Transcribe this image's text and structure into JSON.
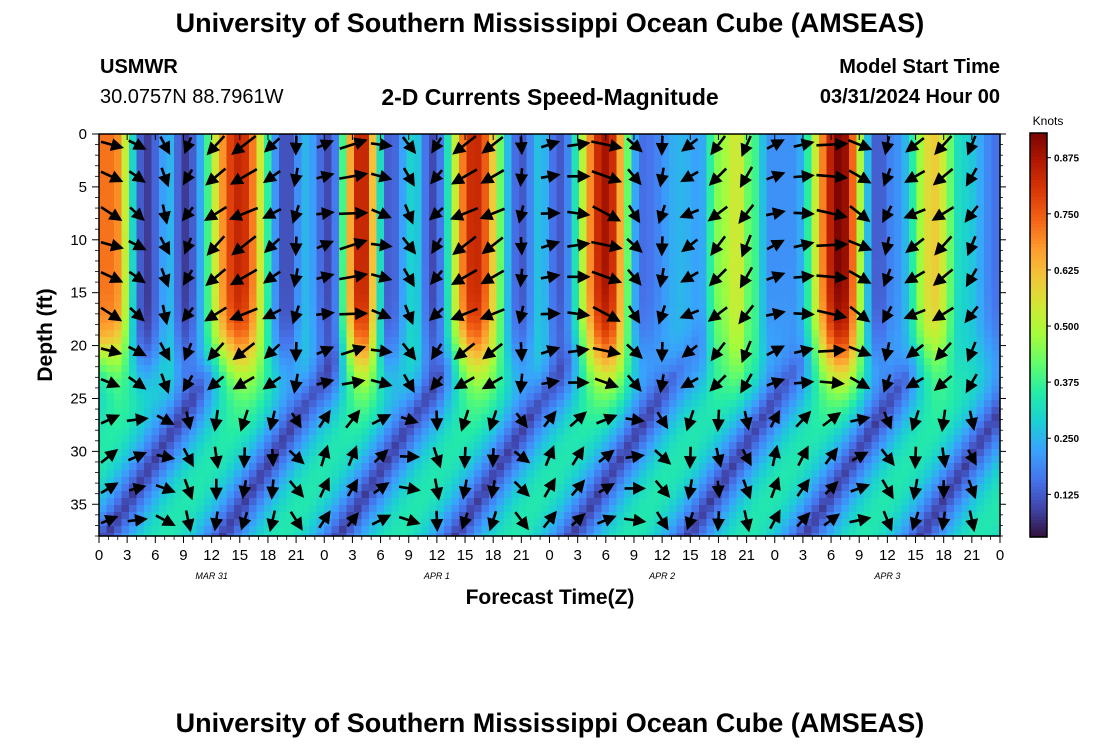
{
  "header": {
    "title": "University of Southern Mississippi Ocean Cube (AMSEAS)",
    "station": "USMWR",
    "coords": "30.0757N  88.7961W",
    "subtitle": "2-D Currents Speed-Magnitude",
    "model_start_label": "Model Start Time",
    "model_start_value": "03/31/2024 Hour 00"
  },
  "footer": {
    "title": "University of Southern Mississippi Ocean Cube (AMSEAS)"
  },
  "chart_data": {
    "type": "heatmap",
    "title": "2-D Currents Speed-Magnitude",
    "xlabel": "Forecast Time(Z)",
    "ylabel": "Depth (ft)",
    "x_ticks": [
      "0",
      "3",
      "6",
      "9",
      "12",
      "15",
      "18",
      "21",
      "0",
      "3",
      "6",
      "9",
      "12",
      "15",
      "18",
      "21",
      "0",
      "3",
      "6",
      "9",
      "12",
      "15",
      "18",
      "21",
      "0",
      "3",
      "6",
      "9",
      "12",
      "15",
      "18",
      "21",
      "0"
    ],
    "x_range_hours": [
      0,
      96
    ],
    "date_labels": [
      {
        "label": "MAR 31",
        "hour": 12
      },
      {
        "label": "APR 1",
        "hour": 36
      },
      {
        "label": "APR 2",
        "hour": 60
      },
      {
        "label": "APR 3",
        "hour": 84
      }
    ],
    "y_ticks": [
      "0",
      "5",
      "10",
      "15",
      "20",
      "25",
      "30",
      "35"
    ],
    "y_range_ft": [
      0,
      38
    ],
    "colorbar": {
      "label": "Knots",
      "ticks": [
        "0.125",
        "0.250",
        "0.375",
        "0.500",
        "0.625",
        "0.750",
        "0.875"
      ],
      "range": [
        0.03,
        0.93
      ],
      "colors": [
        "#30123b",
        "#4145ab",
        "#4675ed",
        "#39a2fc",
        "#1bcfd4",
        "#24eca6",
        "#61fc6c",
        "#a4fc3b",
        "#d1e834",
        "#f3c63a",
        "#fe9b2d",
        "#f36315",
        "#d93806",
        "#b11901",
        "#7a0402"
      ]
    },
    "speed_peaks": [
      {
        "hour": 1.5,
        "value": 0.72
      },
      {
        "hour": 5,
        "value": 0.08
      },
      {
        "hour": 7.5,
        "value": 0.25
      },
      {
        "hour": 9,
        "value": 0.08
      },
      {
        "hour": 15,
        "value": 0.84
      },
      {
        "hour": 20,
        "value": 0.1
      },
      {
        "hour": 22,
        "value": 0.25
      },
      {
        "hour": 24.5,
        "value": 0.1
      },
      {
        "hour": 28,
        "value": 0.86
      },
      {
        "hour": 31,
        "value": 0.12
      },
      {
        "hour": 33.5,
        "value": 0.3
      },
      {
        "hour": 35.5,
        "value": 0.1
      },
      {
        "hour": 40,
        "value": 0.84
      },
      {
        "hour": 45,
        "value": 0.12
      },
      {
        "hour": 47,
        "value": 0.27
      },
      {
        "hour": 49,
        "value": 0.12
      },
      {
        "hour": 54,
        "value": 0.88
      },
      {
        "hour": 58,
        "value": 0.15
      },
      {
        "hour": 62,
        "value": 0.25
      },
      {
        "hour": 64,
        "value": 0.22
      },
      {
        "hour": 66,
        "value": 0.45
      },
      {
        "hour": 68,
        "value": 0.55
      },
      {
        "hour": 69.5,
        "value": 0.4
      },
      {
        "hour": 71.5,
        "value": 0.2
      },
      {
        "hour": 74,
        "value": 0.2
      },
      {
        "hour": 79,
        "value": 0.93
      },
      {
        "hour": 83,
        "value": 0.12
      },
      {
        "hour": 85,
        "value": 0.2
      },
      {
        "hour": 89,
        "value": 0.6
      },
      {
        "hour": 92,
        "value": 0.3
      },
      {
        "hour": 96,
        "value": 0.15
      }
    ],
    "arrow_columns": [
      {
        "hour": 1,
        "angle_deg": 20
      },
      {
        "hour": 4,
        "angle_deg": 35
      },
      {
        "hour": 7,
        "angle_deg": 70
      },
      {
        "hour": 9.5,
        "angle_deg": 120
      },
      {
        "hour": 12.5,
        "angle_deg": 140
      },
      {
        "hour": 15.5,
        "angle_deg": 150
      },
      {
        "hour": 18.5,
        "angle_deg": 145
      },
      {
        "hour": 21,
        "angle_deg": 100
      },
      {
        "hour": 24,
        "angle_deg": -15
      },
      {
        "hour": 27,
        "angle_deg": -10
      },
      {
        "hour": 30,
        "angle_deg": 15
      },
      {
        "hour": 33,
        "angle_deg": 60
      },
      {
        "hour": 36,
        "angle_deg": 130
      },
      {
        "hour": 39,
        "angle_deg": 150
      },
      {
        "hour": 42,
        "angle_deg": 150
      },
      {
        "hour": 45,
        "angle_deg": 95
      },
      {
        "hour": 48,
        "angle_deg": -10
      },
      {
        "hour": 51,
        "angle_deg": 0
      },
      {
        "hour": 54,
        "angle_deg": 20
      },
      {
        "hour": 57,
        "angle_deg": 50
      },
      {
        "hour": 60,
        "angle_deg": 100
      },
      {
        "hour": 63,
        "angle_deg": 150
      },
      {
        "hour": 66,
        "angle_deg": 135
      },
      {
        "hour": 69,
        "angle_deg": 120
      },
      {
        "hour": 72,
        "angle_deg": -20
      },
      {
        "hour": 75,
        "angle_deg": -5
      },
      {
        "hour": 78,
        "angle_deg": 5
      },
      {
        "hour": 81,
        "angle_deg": 30
      },
      {
        "hour": 84,
        "angle_deg": 110
      },
      {
        "hour": 87,
        "angle_deg": 150
      },
      {
        "hour": 90,
        "angle_deg": 140
      },
      {
        "hour": 93,
        "angle_deg": 120
      }
    ]
  }
}
